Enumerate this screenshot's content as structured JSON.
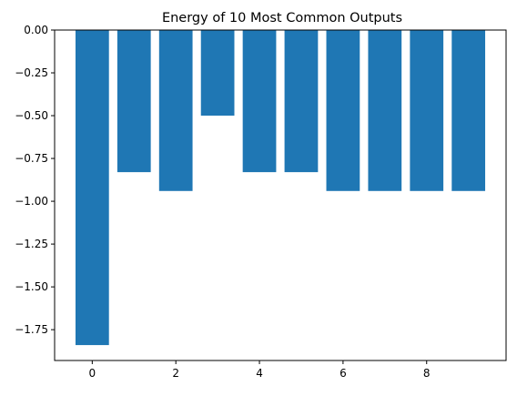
{
  "chart_data": {
    "type": "bar",
    "title": "Energy of 10 Most Common Outputs",
    "xlabel": "",
    "ylabel": "",
    "x": [
      0,
      1,
      2,
      3,
      4,
      5,
      6,
      7,
      8,
      9
    ],
    "values": [
      -1.84,
      -0.83,
      -0.94,
      -0.5,
      -0.83,
      -0.83,
      -0.94,
      -0.94,
      -0.94,
      -0.94
    ],
    "xlim": [
      -0.9,
      9.9
    ],
    "ylim": [
      -1.93,
      0.0
    ],
    "xticks": [
      0,
      2,
      4,
      6,
      8
    ],
    "xtick_labels": [
      "0",
      "2",
      "4",
      "6",
      "8"
    ],
    "yticks": [
      0.0,
      -0.25,
      -0.5,
      -0.75,
      -1.0,
      -1.25,
      -1.5,
      -1.75
    ],
    "ytick_labels": [
      "0.00",
      "−0.25",
      "−0.50",
      "−0.75",
      "−1.00",
      "−1.25",
      "−1.50",
      "−1.75"
    ],
    "bar_color": "#1f77b4",
    "grid": false,
    "legend": "none"
  }
}
